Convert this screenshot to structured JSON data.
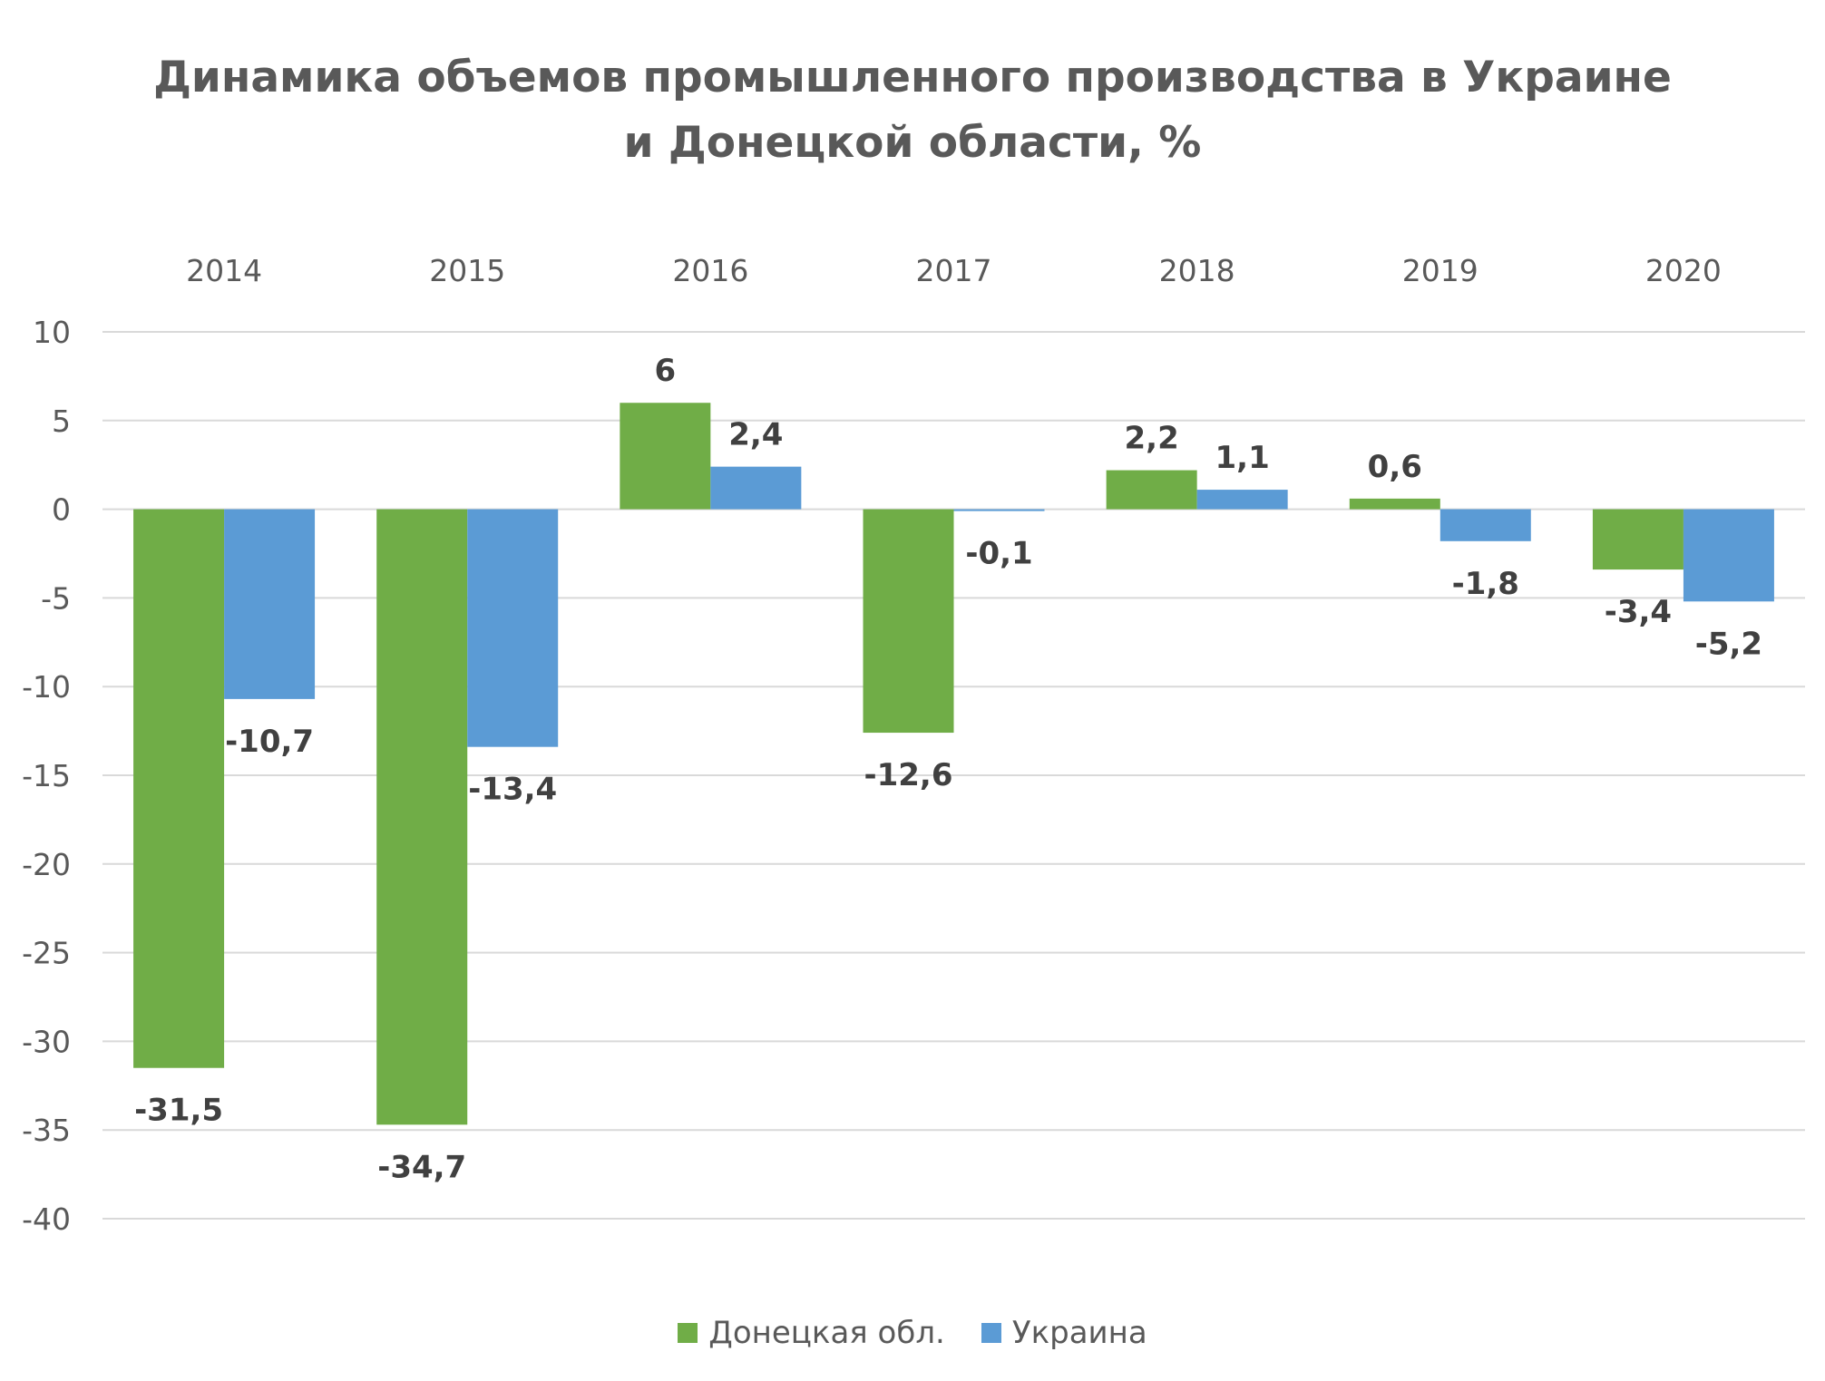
{
  "chart_data": {
    "type": "bar",
    "title_lines": [
      "Динамика объемов промышленного производства в Украине",
      "и Донецкой области, %"
    ],
    "categories": [
      "2014",
      "2015",
      "2016",
      "2017",
      "2018",
      "2019",
      "2020"
    ],
    "series": [
      {
        "name": "Донецкая обл.",
        "color": "#70AD47",
        "values": [
          -31.5,
          -34.7,
          6,
          -12.6,
          2.2,
          0.6,
          -3.4
        ],
        "labels": [
          "-31,5",
          "-34,7",
          "6",
          "-12,6",
          "2,2",
          "0,6",
          "-3,4"
        ]
      },
      {
        "name": "Украина",
        "color": "#5B9BD5",
        "values": [
          -10.7,
          -13.4,
          2.4,
          -0.1,
          1.1,
          -1.8,
          -5.2
        ],
        "labels": [
          "-10,7",
          "-13,4",
          "2,4",
          "-0,1",
          "1,1",
          "-1,8",
          "-5,2"
        ]
      }
    ],
    "ylim": [
      -40,
      10
    ],
    "y_ticks": [
      "10",
      "5",
      "0",
      "-5",
      "-10",
      "-15",
      "-20",
      "-25",
      "-30",
      "-35",
      "-40"
    ],
    "category_axis_position": "top",
    "grid": true,
    "legend_position": "bottom"
  }
}
